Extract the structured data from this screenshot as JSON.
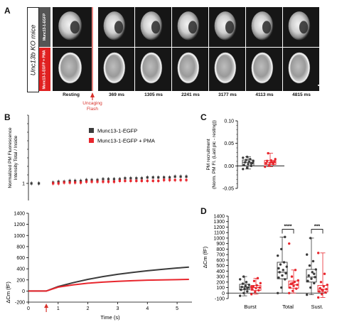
{
  "panel_a": {
    "letter": "A",
    "mouse_label": "Unc13b KO mice",
    "row_labels": [
      "Munc13-1-EGFP",
      "Munc13-1-EGFP + PMA"
    ],
    "time_labels": [
      "Resting",
      "369 ms",
      "1305 ms",
      "2241 ms",
      "3177 ms",
      "4113 ms",
      "4815 ms"
    ],
    "uncaging_label": [
      "Uncaging",
      "Flash"
    ],
    "colors": {
      "flash_marker": "#d8322b",
      "row1_label_bg": "#555555",
      "row2_label_bg": "#e02020"
    }
  },
  "panel_b": {
    "letter": "B",
    "legend": [
      "Munc13-1-EGFP",
      "Munc13-1-EGFP + PMA"
    ]
  },
  "panel_c": {
    "letter": "C"
  },
  "panel_d": {
    "letter": "D"
  },
  "chart_data": [
    {
      "type": "scatter",
      "id": "B_top",
      "ylabel": "Normalized PM Fluorescence Intensity Total / Inside",
      "ytick_labels": [
        "1"
      ],
      "ylim": [
        0.8,
        1.8
      ],
      "xlim": [
        0,
        5.5
      ],
      "series": [
        {
          "name": "Munc13-1-EGFP",
          "color": "#3b3b3b",
          "x": [
            0.83,
            1.01,
            1.2,
            1.39,
            1.57,
            1.76,
            1.95,
            2.13,
            2.32,
            2.51,
            2.69,
            2.88,
            3.07,
            3.25,
            3.44,
            3.63,
            3.81,
            4.0,
            4.19,
            4.37,
            4.56,
            4.75,
            4.93,
            5.12,
            5.31
          ],
          "y": [
            1.01,
            1.02,
            1.02,
            1.03,
            1.03,
            1.03,
            1.04,
            1.04,
            1.04,
            1.05,
            1.05,
            1.05,
            1.05,
            1.06,
            1.06,
            1.06,
            1.06,
            1.07,
            1.07,
            1.07,
            1.07,
            1.07,
            1.08,
            1.08,
            1.08
          ]
        },
        {
          "name": "Munc13-1-EGFP + PMA",
          "color": "#e8262d",
          "x": [
            0.83,
            1.01,
            1.2,
            1.39,
            1.57,
            1.76,
            1.95,
            2.13,
            2.32,
            2.51,
            2.69,
            2.88,
            3.07,
            3.25,
            3.44,
            3.63,
            3.81,
            4.0,
            4.19,
            4.37,
            4.56,
            4.75,
            4.93,
            5.12,
            5.31
          ],
          "y": [
            1.0,
            1.0,
            1.01,
            1.01,
            1.01,
            1.01,
            1.02,
            1.02,
            1.02,
            1.02,
            1.02,
            1.02,
            1.03,
            1.03,
            1.03,
            1.03,
            1.03,
            1.03,
            1.03,
            1.03,
            1.04,
            1.04,
            1.04,
            1.04,
            1.04
          ]
        },
        {
          "name": "",
          "color": "#3b3b3b",
          "x": [
            0.1,
            0.35
          ],
          "y": [
            1.0,
            1.0
          ]
        }
      ]
    },
    {
      "type": "line",
      "id": "B_bottom",
      "xlabel": "Time (s)",
      "ylabel": "ΔCm (fF)",
      "xlim": [
        0,
        5.5
      ],
      "ylim": [
        -200,
        1400
      ],
      "yticks": [
        -200,
        0,
        200,
        400,
        600,
        800,
        1000,
        1200,
        1400
      ],
      "xticks": [
        0,
        1,
        2,
        3,
        4,
        5
      ],
      "annotation": {
        "type": "arrow",
        "x": 0.6,
        "color": "#d8322b"
      },
      "series": [
        {
          "name": "Munc13-1-EGFP",
          "color": "#3b3b3b",
          "x": [
            0,
            0.5,
            0.6,
            1,
            1.5,
            2,
            2.5,
            3,
            3.5,
            4,
            4.5,
            5,
            5.4
          ],
          "y": [
            0,
            0,
            0,
            80,
            150,
            210,
            260,
            300,
            335,
            365,
            390,
            415,
            430
          ]
        },
        {
          "name": "Munc13-1-EGFP + PMA",
          "color": "#e8262d",
          "x": [
            0,
            0.5,
            0.6,
            1,
            1.5,
            2,
            2.5,
            3,
            3.5,
            4,
            4.5,
            5,
            5.4
          ],
          "y": [
            0,
            0,
            0,
            70,
            110,
            140,
            160,
            175,
            185,
            195,
            200,
            205,
            210
          ]
        }
      ]
    },
    {
      "type": "box",
      "id": "C",
      "ylabel": "PM recruitment (Norm. PM FI. (Last pic - resting))",
      "ylim": [
        -0.05,
        0.1
      ],
      "yticks": [
        -0.05,
        0.0,
        0.05,
        0.1
      ],
      "ytick_labels": [
        "-0.05",
        "0.00",
        "0.05",
        "0.10"
      ],
      "groups": [
        {
          "name": "Munc13-1-EGFP",
          "color": "#3b3b3b",
          "q1": 0.0,
          "median": 0.008,
          "q3": 0.013,
          "whisker": [
            -0.007,
            0.02
          ],
          "points": [
            -0.007,
            -0.004,
            0.0,
            0.002,
            0.004,
            0.006,
            0.008,
            0.009,
            0.011,
            0.013,
            0.015,
            0.018,
            0.02,
            0.005
          ]
        },
        {
          "name": "Munc13-1-EGFP + PMA",
          "color": "#e8262d",
          "q1": 0.003,
          "median": 0.007,
          "q3": 0.012,
          "whisker": [
            -0.002,
            0.028
          ],
          "points": [
            -0.002,
            0.002,
            0.004,
            0.006,
            0.007,
            0.009,
            0.011,
            0.012,
            0.015,
            0.028,
            0.008
          ]
        }
      ]
    },
    {
      "type": "box",
      "id": "D",
      "ylabel": "ΔCm (fF)",
      "ylim": [
        -100,
        1400
      ],
      "yticks": [
        -100,
        0,
        100,
        200,
        300,
        400,
        500,
        600,
        700,
        800,
        900,
        1000,
        1100,
        1200,
        1300,
        1400
      ],
      "categories": [
        "Burst",
        "Total",
        "Sust."
      ],
      "significance": [
        {
          "category": "Total",
          "label": "****"
        },
        {
          "category": "Sust.",
          "label": "***"
        }
      ],
      "groups": [
        {
          "category": "Burst",
          "name": "Munc13-1-EGFP",
          "color": "#3b3b3b",
          "q1": 60,
          "median": 110,
          "q3": 160,
          "whisker": [
            -50,
            300
          ],
          "points": [
            -50,
            0,
            30,
            60,
            80,
            100,
            110,
            130,
            150,
            170,
            200,
            250,
            300,
            90
          ]
        },
        {
          "category": "Burst",
          "name": "Munc13-1-EGFP + PMA",
          "color": "#e8262d",
          "q1": 50,
          "median": 100,
          "q3": 140,
          "whisker": [
            -20,
            270
          ],
          "points": [
            -20,
            20,
            50,
            70,
            90,
            100,
            120,
            140,
            180,
            220,
            270,
            110
          ]
        },
        {
          "category": "Total",
          "name": "Munc13-1-EGFP",
          "color": "#3b3b3b",
          "q1": 260,
          "median": 380,
          "q3": 560,
          "whisker": [
            0,
            1020
          ],
          "points": [
            0,
            100,
            250,
            280,
            320,
            360,
            380,
            420,
            480,
            520,
            560,
            680,
            800,
            1020,
            450
          ]
        },
        {
          "category": "Total",
          "name": "Munc13-1-EGFP + PMA",
          "color": "#e8262d",
          "q1": 90,
          "median": 150,
          "q3": 220,
          "whisker": [
            0,
            420
          ],
          "points": [
            0,
            40,
            80,
            100,
            130,
            150,
            170,
            200,
            230,
            300,
            420,
            900,
            180
          ]
        },
        {
          "category": "Sust.",
          "name": "Munc13-1-EGFP",
          "color": "#3b3b3b",
          "q1": 200,
          "median": 290,
          "q3": 430,
          "whisker": [
            -30,
            1000
          ],
          "points": [
            -30,
            100,
            180,
            220,
            260,
            290,
            320,
            380,
            430,
            500,
            580,
            700,
            1000,
            350
          ]
        },
        {
          "category": "Sust.",
          "name": "Munc13-1-EGFP + PMA",
          "color": "#e8262d",
          "q1": 20,
          "median": 70,
          "q3": 140,
          "whisker": [
            -80,
            730
          ],
          "points": [
            -80,
            -20,
            10,
            30,
            50,
            70,
            90,
            120,
            150,
            200,
            350,
            730,
            60
          ]
        }
      ]
    }
  ]
}
